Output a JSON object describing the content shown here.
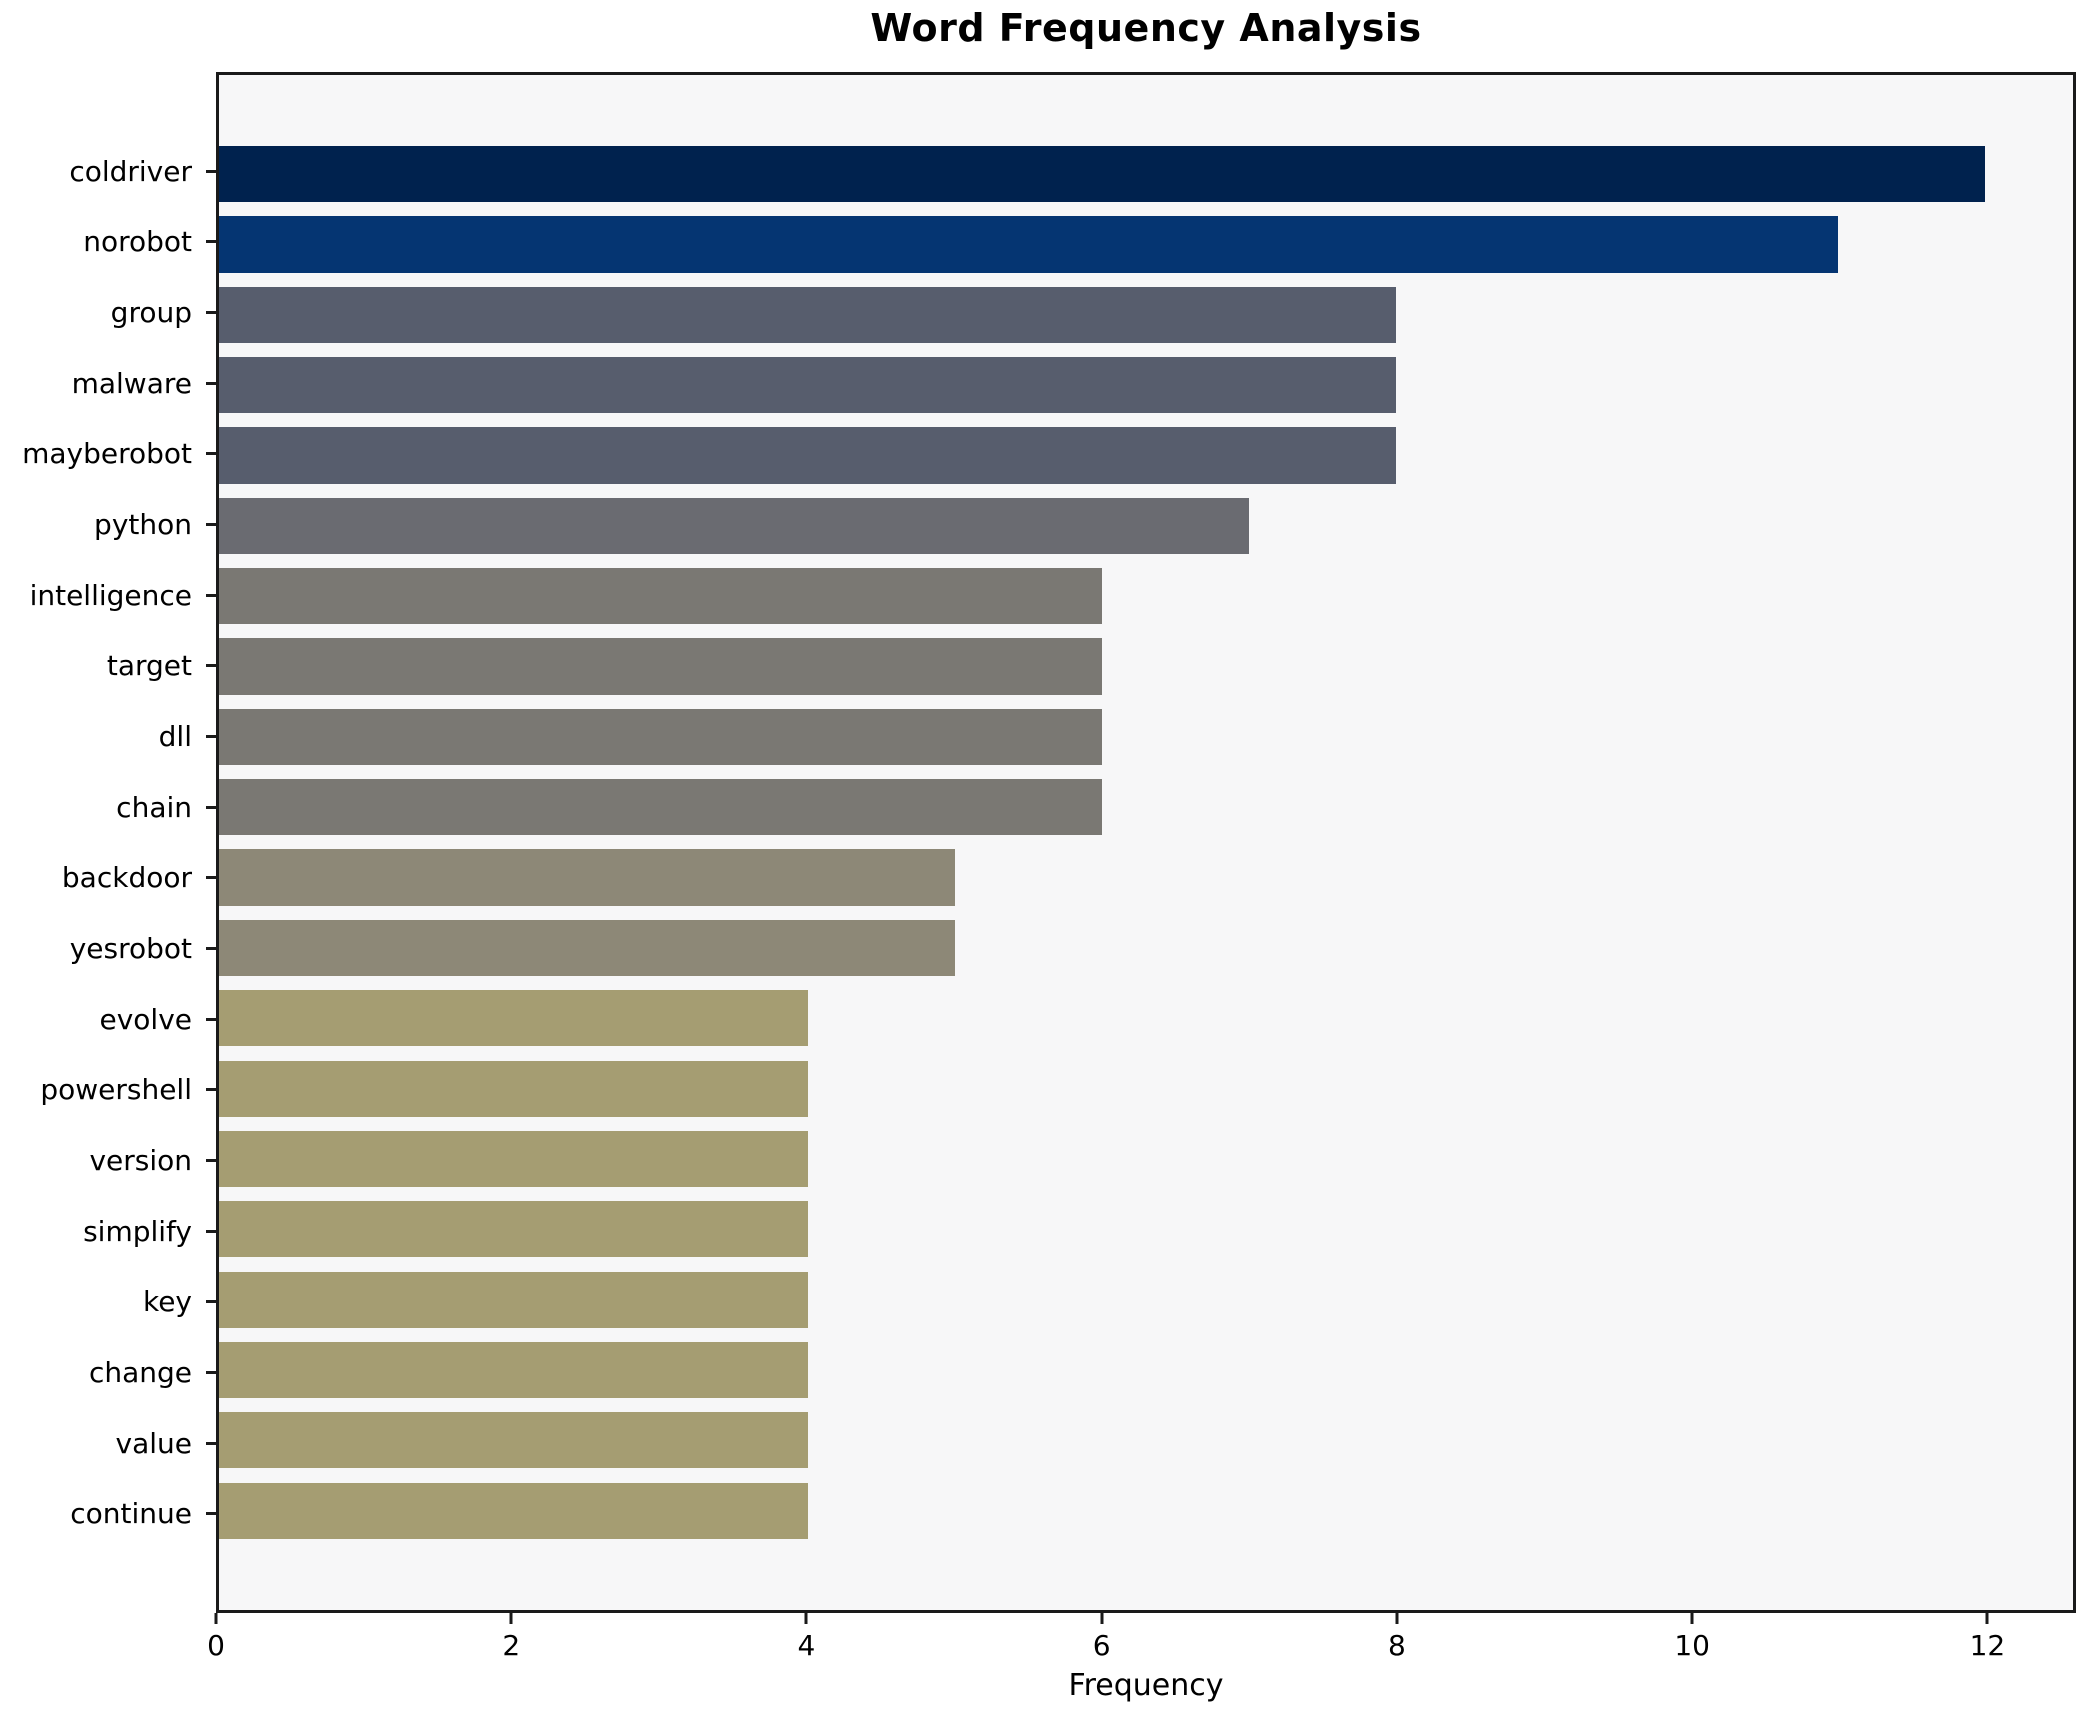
{
  "figure": {
    "title": "Word Frequency Analysis",
    "xlabel": "Frequency"
  },
  "colors": {
    "page_bg": "#ffffff",
    "plot_bg": "#f7f7f8",
    "spine": "#1a1a1a",
    "text": "#000000"
  },
  "chart_data": {
    "type": "bar",
    "orientation": "horizontal",
    "title": "Word Frequency Analysis",
    "xlabel": "Frequency",
    "ylabel": "",
    "xlim": [
      0,
      12.6
    ],
    "xticks": [
      0,
      2,
      4,
      6,
      8,
      10,
      12
    ],
    "grid": false,
    "legend": false,
    "categories": [
      "coldriver",
      "norobot",
      "group",
      "malware",
      "mayberobot",
      "python",
      "intelligence",
      "target",
      "dll",
      "chain",
      "backdoor",
      "yesrobot",
      "evolve",
      "powershell",
      "version",
      "simplify",
      "key",
      "change",
      "value",
      "continue"
    ],
    "values": [
      12,
      11,
      8,
      8,
      8,
      7,
      6,
      6,
      6,
      6,
      5,
      5,
      4,
      4,
      4,
      4,
      4,
      4,
      4,
      4
    ],
    "bar_colors": [
      "#00224e",
      "#053572",
      "#575d6d",
      "#575d6d",
      "#575d6d",
      "#6a6b71",
      "#7a7873",
      "#7a7873",
      "#7a7873",
      "#7a7873",
      "#8d8877",
      "#8d8877",
      "#a59d72",
      "#a59d72",
      "#a59d72",
      "#a59d72",
      "#a59d72",
      "#a59d72",
      "#a59d72",
      "#a59d72"
    ]
  }
}
